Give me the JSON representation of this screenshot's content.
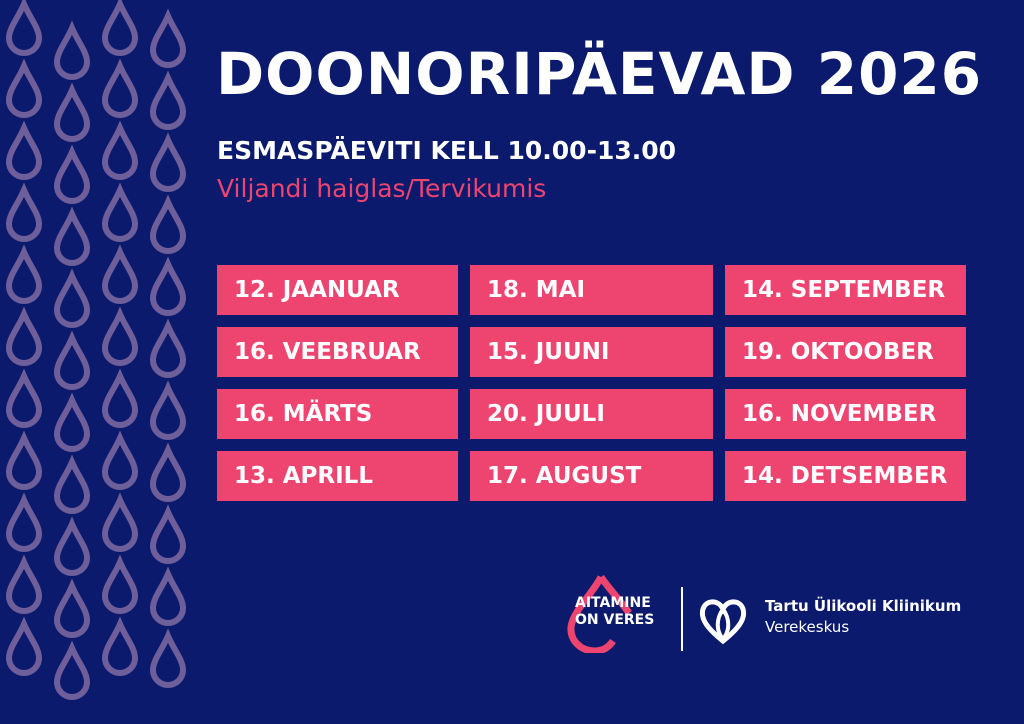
{
  "colors": {
    "background": "#0b1a6c",
    "accent": "#ee4470",
    "drop_pattern": "#6e5f9b",
    "text": "#ffffff"
  },
  "header": {
    "title": "DOONORIPÄEVAD 2026",
    "subtitle": "ESMASPÄEVITI KELL 10.00-13.00",
    "location": "Viljandi haiglas/Tervikumis"
  },
  "dates": [
    "12. JAANUAR",
    "18. MAI",
    "14. SEPTEMBER",
    "16. VEEBRUAR",
    "15. JUUNI",
    "19. OKTOOBER",
    "16. MÄRTS",
    "20. JUULI",
    "16. NOVEMBER",
    "13. APRILL",
    "17. AUGUST",
    "14. DETSEMBER"
  ],
  "footer": {
    "campaign_logo": {
      "line1": "AITAMINE",
      "line2": "ON VERES",
      "icon": "blood-drop-icon"
    },
    "clinic_logo": {
      "name": "Tartu Ülikooli Kliinikum",
      "unit": "Verekeskus",
      "icon": "heart-knot-icon"
    }
  }
}
